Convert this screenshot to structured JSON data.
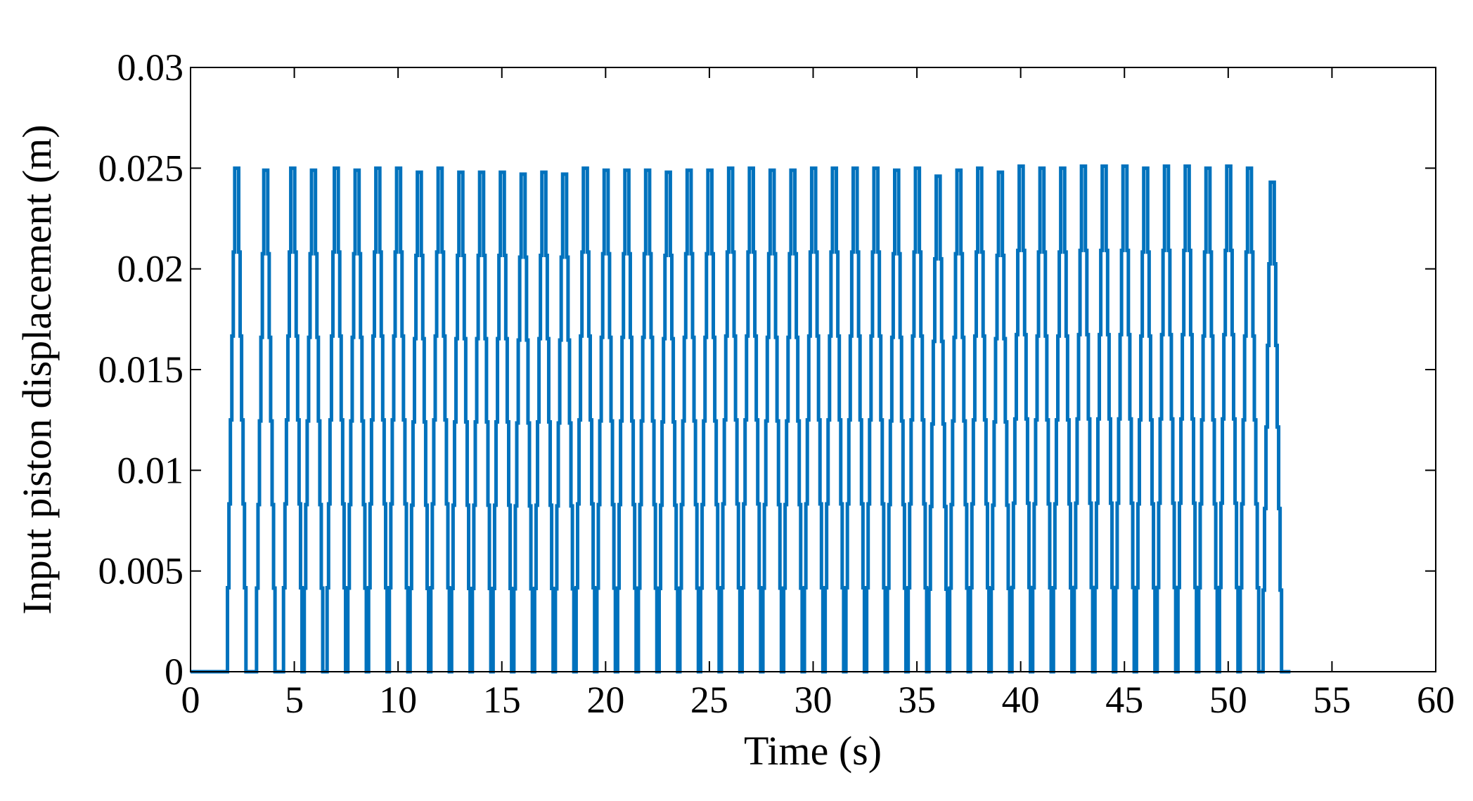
{
  "chart_data": {
    "type": "line",
    "title": "",
    "xlabel": "Time (s)",
    "ylabel": "Input piston displacement (m)",
    "xlim": [
      0,
      60
    ],
    "ylim": [
      0,
      0.03
    ],
    "xticks": [
      0,
      5,
      10,
      15,
      20,
      25,
      30,
      35,
      40,
      45,
      50,
      55,
      60
    ],
    "xtick_labels": [
      "0",
      "5",
      "10",
      "15",
      "20",
      "25",
      "30",
      "35",
      "40",
      "45",
      "50",
      "55",
      "60"
    ],
    "yticks": [
      0,
      0.005,
      0.01,
      0.015,
      0.02,
      0.025,
      0.03
    ],
    "ytick_labels": [
      "0",
      "0.005",
      "0.01",
      "0.015",
      "0.02",
      "0.025",
      "0.03"
    ],
    "grid": false,
    "legend": "none",
    "colors": {
      "series": "#0072BD",
      "axes": "#000000",
      "background": "#ffffff"
    },
    "series": [
      {
        "start_time": 1.6,
        "end_time": 53.0,
        "baseline_before": 0,
        "baseline_after": 0,
        "step_size": 0.0054,
        "cycle_durations": [
          1.3,
          1.2,
          1.2,
          1.1,
          1.1,
          1.1,
          1.0,
          1.0,
          1.0,
          1.0,
          1.0,
          1.0,
          1.0,
          1.0,
          1.0,
          1.0,
          1.0,
          1.0,
          1.0,
          1.0,
          1.0,
          1.0,
          1.0,
          1.0,
          1.0,
          1.0,
          1.0,
          1.0,
          1.0,
          1.0,
          1.0,
          1.0,
          1.0,
          1.0,
          1.0,
          1.0,
          1.0,
          1.0,
          1.0,
          1.0,
          1.0,
          1.0,
          1.0,
          1.0,
          1.0,
          1.0,
          1.0,
          1.0,
          1.0,
          1.0,
          1.0,
          1.0,
          1.0,
          1.0,
          1.0,
          1.0,
          1.0,
          1.0,
          1.0,
          1.0,
          1.0,
          1.0,
          1.0,
          1.0,
          1.0,
          1.0,
          1.0,
          1.0,
          1.0,
          1.0,
          1.0,
          1.0,
          1.0,
          1.0,
          1.0,
          1.0,
          1.0,
          1.0,
          1.0,
          1.0,
          1.0,
          1.0,
          1.0,
          1.0,
          1.0,
          1.0,
          1.0,
          1.0,
          1.0,
          1.0,
          1.0,
          1.0,
          1.0,
          1.0,
          1.0,
          1.0,
          1.0,
          1.0,
          1.0,
          1.0,
          1.0,
          1.0,
          1.0,
          1.0,
          1.0,
          1.0,
          1.0,
          1.0,
          1.0
        ],
        "peak_values": [
          0.025,
          0.0249,
          0.025,
          0.0249,
          0.025,
          0.0248,
          0.0249,
          0.025,
          0.025,
          0.0249,
          0.025,
          0.0249,
          0.0248,
          0.0249,
          0.0248,
          0.0247,
          0.0248,
          0.0247,
          0.0249,
          0.0248,
          0.025,
          0.0249,
          0.0249,
          0.0248,
          0.0249,
          0.0248,
          0.0249,
          0.025,
          0.0249,
          0.025,
          0.0249,
          0.0248,
          0.0247,
          0.0249,
          0.0248,
          0.0249,
          0.025,
          0.025,
          0.025,
          0.0249,
          0.025,
          0.0249,
          0.0249,
          0.0248,
          0.0251,
          0.025,
          0.025,
          0.025,
          0.0249,
          0.025,
          0.0249,
          0.025,
          0.0251,
          0.0249,
          0.0248,
          0.0249,
          0.0249,
          0.0251,
          0.0251,
          0.025,
          0.0251,
          0.0249,
          0.0252,
          0.0251,
          0.0251,
          0.0251,
          0.025,
          0.0249,
          0.0251,
          0.0252,
          0.0252,
          0.0251,
          0.0252,
          0.0251,
          0.025,
          0.0251,
          0.0252,
          0.0252,
          0.0251,
          0.025,
          0.0251,
          0.0252,
          0.0251,
          0.0252,
          0.025,
          0.025,
          0.0252,
          0.0252,
          0.0252,
          0.0251,
          0.025,
          0.025,
          0.0251,
          0.025,
          0.0243
        ],
        "peaks": [
          [
            2.2,
            0.025
          ],
          [
            3.6,
            0.0249
          ],
          [
            4.9,
            0.025
          ],
          [
            5.9,
            0.0249
          ],
          [
            7.0,
            0.025
          ],
          [
            8.0,
            0.0249
          ],
          [
            9.0,
            0.025
          ],
          [
            10.0,
            0.025
          ],
          [
            11.0,
            0.0248
          ],
          [
            12.0,
            0.025
          ],
          [
            13.0,
            0.0248
          ],
          [
            14.0,
            0.0248
          ],
          [
            15.0,
            0.0248
          ],
          [
            16.0,
            0.0247
          ],
          [
            17.0,
            0.0248
          ],
          [
            18.0,
            0.0247
          ],
          [
            19.0,
            0.025
          ],
          [
            20.0,
            0.0249
          ],
          [
            21.0,
            0.0249
          ],
          [
            22.0,
            0.0249
          ],
          [
            23.0,
            0.0248
          ],
          [
            24.0,
            0.0249
          ],
          [
            25.0,
            0.0249
          ],
          [
            26.0,
            0.025
          ],
          [
            27.0,
            0.025
          ],
          [
            28.0,
            0.0249
          ],
          [
            29.0,
            0.0249
          ],
          [
            30.0,
            0.025
          ],
          [
            31.0,
            0.025
          ],
          [
            32.0,
            0.025
          ],
          [
            33.0,
            0.025
          ],
          [
            34.0,
            0.0249
          ],
          [
            35.0,
            0.025
          ],
          [
            36.0,
            0.0246
          ],
          [
            37.0,
            0.0249
          ],
          [
            38.0,
            0.025
          ],
          [
            39.0,
            0.0248
          ],
          [
            40.0,
            0.0251
          ],
          [
            41.0,
            0.025
          ],
          [
            42.0,
            0.025
          ],
          [
            43.0,
            0.0251
          ],
          [
            44.0,
            0.0251
          ],
          [
            45.0,
            0.0251
          ],
          [
            46.0,
            0.025
          ],
          [
            47.0,
            0.0251
          ],
          [
            48.0,
            0.0251
          ],
          [
            49.0,
            0.025
          ],
          [
            50.0,
            0.0251
          ],
          [
            51.0,
            0.025
          ],
          [
            52.1,
            0.0243
          ]
        ]
      }
    ]
  }
}
